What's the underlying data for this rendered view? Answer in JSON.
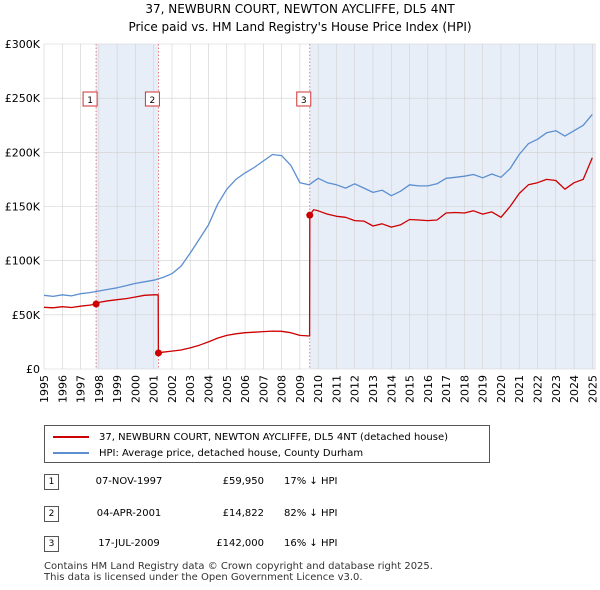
{
  "title": "37, NEWBURN COURT, NEWTON AYCLIFFE, DL5 4NT",
  "subtitle": "Price paid vs. HM Land Registry's House Price Index (HPI)",
  "colors": {
    "property": "#cc0000",
    "hpi": "#5b8fd0",
    "shade": "#e8eef8",
    "grid": "#d0d0d0"
  },
  "legend": {
    "property_label": "37, NEWBURN COURT, NEWTON AYCLIFFE, DL5 4NT (detached house)",
    "hpi_label": "HPI: Average price, detached house, County Durham"
  },
  "sales": [
    {
      "num": "1",
      "date": "07-NOV-1997",
      "price": "£59,950",
      "hpi": "17% ↓ HPI"
    },
    {
      "num": "2",
      "date": "04-APR-2001",
      "price": "£14,822",
      "hpi": "82% ↓ HPI"
    },
    {
      "num": "3",
      "date": "17-JUL-2009",
      "price": "£142,000",
      "hpi": "16% ↓ HPI"
    }
  ],
  "footer": {
    "line1": "Contains HM Land Registry data © Crown copyright and database right 2025.",
    "line2": "This data is licensed under the Open Government Licence v3.0."
  },
  "chart_data": {
    "type": "line",
    "title": "37, NEWBURN COURT, NEWTON AYCLIFFE, DL5 4NT",
    "subtitle": "Price paid vs. HM Land Registry's House Price Index (HPI)",
    "xlabel": "",
    "ylabel": "",
    "xlim": [
      1995,
      2025.2
    ],
    "ylim": [
      0,
      300000
    ],
    "yticks": [
      0,
      50000,
      100000,
      150000,
      200000,
      250000,
      300000
    ],
    "ytick_labels": [
      "£0",
      "£50K",
      "£100K",
      "£150K",
      "£200K",
      "£250K",
      "£300K"
    ],
    "xticks": [
      1995,
      1996,
      1997,
      1998,
      1999,
      2000,
      2001,
      2002,
      2003,
      2004,
      2005,
      2006,
      2007,
      2008,
      2009,
      2010,
      2011,
      2012,
      2013,
      2014,
      2015,
      2016,
      2017,
      2018,
      2019,
      2020,
      2021,
      2022,
      2023,
      2024,
      2025
    ],
    "grid": true,
    "sale_markers": [
      {
        "label": "1",
        "x": 1997.85,
        "y": 59950
      },
      {
        "label": "2",
        "x": 2001.26,
        "y": 14822
      },
      {
        "label": "3",
        "x": 2009.54,
        "y": 142000
      }
    ],
    "shaded_spans": [
      [
        1997.85,
        2001.26
      ],
      [
        2009.54,
        2025.2
      ]
    ],
    "series": [
      {
        "name": "37, NEWBURN COURT, NEWTON AYCLIFFE, DL5 4NT (detached house)",
        "x": [
          1995,
          1995.5,
          1996,
          1996.5,
          1997,
          1997.5,
          1997.84,
          1997.85,
          1998,
          1998.5,
          1999,
          1999.5,
          2000,
          2000.5,
          2001,
          2001.25,
          2001.26,
          2001.5,
          2002,
          2002.5,
          2003,
          2003.5,
          2004,
          2004.5,
          2005,
          2005.5,
          2006,
          2006.5,
          2007,
          2007.5,
          2008,
          2008.5,
          2009,
          2009.53,
          2009.54,
          2009.75,
          2010,
          2010.5,
          2011,
          2011.5,
          2012,
          2012.5,
          2013,
          2013.5,
          2014,
          2014.5,
          2015,
          2015.5,
          2016,
          2016.5,
          2017,
          2017.5,
          2018,
          2018.5,
          2019,
          2019.5,
          2020,
          2020.5,
          2021,
          2021.5,
          2022,
          2022.5,
          2023,
          2023.5,
          2024,
          2024.5,
          2025
        ],
        "y": [
          57000,
          56500,
          57500,
          56800,
          58000,
          59000,
          59950,
          59950,
          61500,
          63000,
          64000,
          65000,
          66500,
          68000,
          68500,
          68500,
          14822,
          15500,
          16500,
          17500,
          19500,
          22000,
          25000,
          28500,
          31000,
          32500,
          33500,
          34000,
          34500,
          35000,
          34800,
          33500,
          31000,
          30500,
          142000,
          147000,
          146000,
          143000,
          141000,
          140000,
          137000,
          136500,
          132000,
          134000,
          131000,
          133000,
          138000,
          137500,
          137000,
          137500,
          144000,
          144500,
          144000,
          146000,
          143000,
          145000,
          140000,
          150000,
          162000,
          170000,
          172000,
          175000,
          174000,
          166000,
          172000,
          175000,
          195000
        ]
      },
      {
        "name": "HPI: Average price, detached house, County Durham",
        "x": [
          1995,
          1995.5,
          1996,
          1996.5,
          1997,
          1997.5,
          1998,
          1998.5,
          1999,
          1999.5,
          2000,
          2000.5,
          2001,
          2001.5,
          2002,
          2002.5,
          2003,
          2003.5,
          2004,
          2004.5,
          2005,
          2005.5,
          2006,
          2006.5,
          2007,
          2007.5,
          2008,
          2008.5,
          2009,
          2009.5,
          2010,
          2010.5,
          2011,
          2011.5,
          2012,
          2012.5,
          2013,
          2013.5,
          2014,
          2014.5,
          2015,
          2015.5,
          2016,
          2016.5,
          2017,
          2017.5,
          2018,
          2018.5,
          2019,
          2019.5,
          2020,
          2020.5,
          2021,
          2021.5,
          2022,
          2022.5,
          2023,
          2023.5,
          2024,
          2024.5,
          2025
        ],
        "y": [
          68000,
          67000,
          68500,
          67500,
          69500,
          70500,
          72000,
          73500,
          75000,
          77000,
          79000,
          80500,
          82000,
          84500,
          88000,
          95000,
          107000,
          120000,
          133000,
          152000,
          166000,
          175000,
          181000,
          186000,
          192000,
          198000,
          197000,
          188000,
          172000,
          170000,
          176000,
          172000,
          170000,
          167000,
          171000,
          167000,
          163000,
          165000,
          160000,
          164000,
          170000,
          169000,
          169000,
          171000,
          176000,
          177000,
          178000,
          179500,
          176500,
          180000,
          177000,
          185000,
          198000,
          208000,
          212000,
          218000,
          220000,
          215000,
          220000,
          225000,
          235000
        ]
      }
    ]
  }
}
